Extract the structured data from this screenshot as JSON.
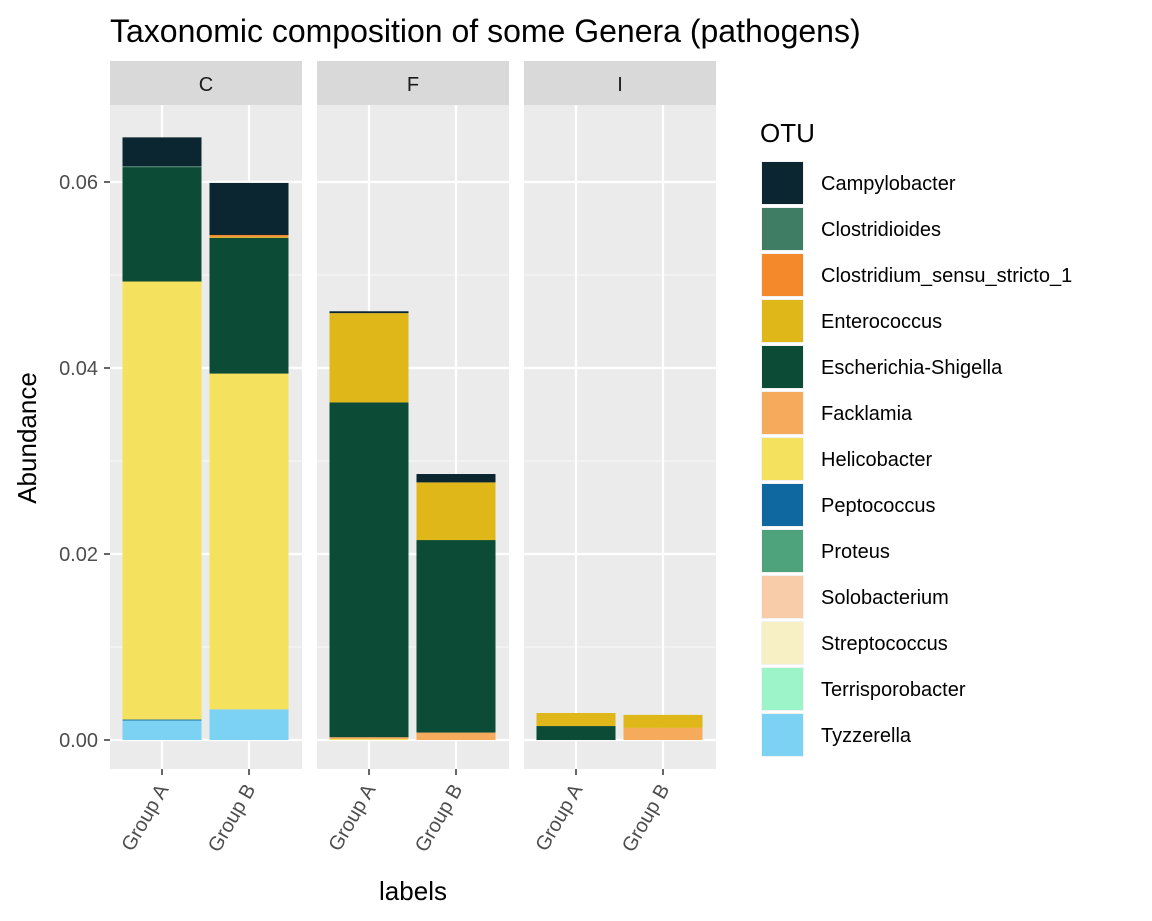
{
  "chart_data": {
    "type": "bar",
    "stacked": true,
    "title": "Taxonomic composition of some Genera (pathogens)",
    "xlabel": "labels",
    "ylabel": "Abundance",
    "ylim": [
      0,
      0.07
    ],
    "yticks": [
      0.0,
      0.02,
      0.04,
      0.06
    ],
    "ytick_labels": [
      "0.00",
      "0.02",
      "0.04",
      "0.06"
    ],
    "grid": true,
    "legend_position": "right",
    "legend_title": "OTU",
    "categories": [
      "Group A",
      "Group B"
    ],
    "series": [
      {
        "name": "Campylobacter",
        "color": "#0b2631"
      },
      {
        "name": "Clostridioides",
        "color": "#3f7e64"
      },
      {
        "name": "Clostridium_sensu_stricto_1",
        "color": "#f4892b"
      },
      {
        "name": "Enterococcus",
        "color": "#dfb719"
      },
      {
        "name": "Escherichia-Shigella",
        "color": "#0c4b35"
      },
      {
        "name": "Facklamia",
        "color": "#f5aa5c"
      },
      {
        "name": "Helicobacter",
        "color": "#f4e25e"
      },
      {
        "name": "Peptococcus",
        "color": "#0f69a0"
      },
      {
        "name": "Proteus",
        "color": "#4ea37c"
      },
      {
        "name": "Solobacterium",
        "color": "#f8cca8"
      },
      {
        "name": "Streptococcus",
        "color": "#f8f0c5"
      },
      {
        "name": "Terrisporobacter",
        "color": "#9ef4c9"
      },
      {
        "name": "Tyzzerella",
        "color": "#7cd2f2"
      }
    ],
    "panels": [
      {
        "label": "C",
        "bars": [
          {
            "category": "Group A",
            "segments": [
              {
                "otu": "Tyzzerella",
                "value": 0.0021
              },
              {
                "otu": "Peptococcus",
                "value": 0.0001
              },
              {
                "otu": "Helicobacter",
                "value": 0.0471
              },
              {
                "otu": "Escherichia-Shigella",
                "value": 0.0123
              },
              {
                "otu": "Clostridioides",
                "value": 0.0001
              },
              {
                "otu": "Campylobacter",
                "value": 0.0031
              }
            ]
          },
          {
            "category": "Group B",
            "segments": [
              {
                "otu": "Tyzzerella",
                "value": 0.0033
              },
              {
                "otu": "Helicobacter",
                "value": 0.0361
              },
              {
                "otu": "Escherichia-Shigella",
                "value": 0.0146
              },
              {
                "otu": "Enterococcus",
                "value": 0.0001
              },
              {
                "otu": "Clostridium_sensu_stricto_1",
                "value": 0.0002
              },
              {
                "otu": "Campylobacter",
                "value": 0.0056
              }
            ]
          }
        ]
      },
      {
        "label": "F",
        "bars": [
          {
            "category": "Group A",
            "segments": [
              {
                "otu": "Helicobacter",
                "value": 0.0001
              },
              {
                "otu": "Facklamia",
                "value": 0.0002
              },
              {
                "otu": "Escherichia-Shigella",
                "value": 0.036
              },
              {
                "otu": "Enterococcus",
                "value": 0.0096
              },
              {
                "otu": "Campylobacter",
                "value": 0.0002
              }
            ]
          },
          {
            "category": "Group B",
            "segments": [
              {
                "otu": "Facklamia",
                "value": 0.0008
              },
              {
                "otu": "Escherichia-Shigella",
                "value": 0.0207
              },
              {
                "otu": "Enterococcus",
                "value": 0.0062
              },
              {
                "otu": "Campylobacter",
                "value": 0.0009
              }
            ]
          }
        ]
      },
      {
        "label": "I",
        "bars": [
          {
            "category": "Group A",
            "segments": [
              {
                "otu": "Escherichia-Shigella",
                "value": 0.0015
              },
              {
                "otu": "Enterococcus",
                "value": 0.0014
              }
            ]
          },
          {
            "category": "Group B",
            "segments": [
              {
                "otu": "Facklamia",
                "value": 0.0013
              },
              {
                "otu": "Enterococcus",
                "value": 0.0014
              }
            ]
          }
        ]
      }
    ]
  }
}
